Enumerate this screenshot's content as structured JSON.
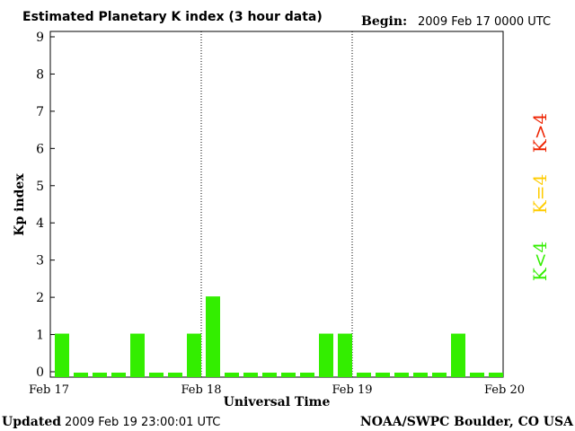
{
  "header": {
    "title": "Estimated Planetary K index (3 hour data)",
    "begin_label": "Begin:",
    "begin_value": "2009 Feb 17 0000 UTC"
  },
  "footer": {
    "updated_label": "Updated",
    "updated_value": "2009 Feb 19 23:00:01 UTC",
    "source": "NOAA/SWPC Boulder, CO USA"
  },
  "legend": {
    "low": "K<4",
    "mid": "K=4",
    "high": "K>4"
  },
  "colors": {
    "low": "#33ee00",
    "mid": "#ffcc00",
    "high": "#ee2200"
  },
  "chart_data": {
    "type": "bar",
    "title": "Estimated Planetary K index (3 hour data)",
    "xlabel": "Universal Time",
    "ylabel": "Kp index",
    "ylim": [
      0,
      9
    ],
    "yticks": [
      "0",
      "1",
      "2",
      "3",
      "4",
      "5",
      "6",
      "7",
      "8",
      "9"
    ],
    "xticks": [
      "Feb 17",
      "Feb 18",
      "Feb 19",
      "Feb 20"
    ],
    "day_separators": [
      "Feb 18",
      "Feb 19"
    ],
    "interval_hours": 3,
    "values": [
      1,
      0,
      0,
      0,
      1,
      0,
      0,
      1,
      2,
      0,
      0,
      0,
      0,
      0,
      1,
      1,
      0,
      0,
      0,
      0,
      0,
      1,
      0,
      0
    ]
  }
}
